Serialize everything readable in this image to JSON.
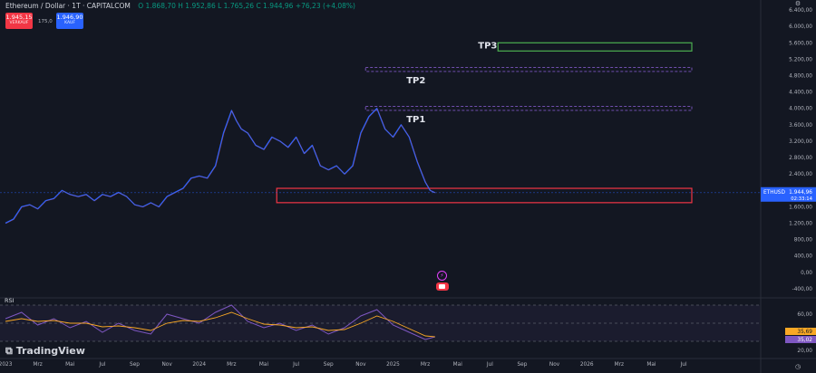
{
  "header": {
    "symbol": "Ethereum / Dollar · 1T · CAPITALCOM",
    "ohlc": "O 1.868,70  H 1.952,86  L 1.765,26  C 1.944,96  +76,23 (+4,08%)"
  },
  "trade": {
    "sell_price": "1.945,15",
    "sell_label": "VERKAUF",
    "buy_price": "1.946,90",
    "buy_label": "KAUF",
    "spread": "175,0"
  },
  "brand": "TradingView",
  "indicator": {
    "name": "RSI",
    "value_1": "35,69",
    "value_2": "35,02"
  },
  "colors": {
    "background": "#131722",
    "candle": "#2962ff",
    "zone_red": "#f23645",
    "tp3": "#4caf50",
    "tp_dashed": "#7e57c2",
    "rsi_line": "#7e57c2",
    "rsi_ma": "#f9a825",
    "price_tag": "#2962ff"
  },
  "chart_data": {
    "type": "line",
    "title": "Ethereum / Dollar · 1T · CAPITALCOM",
    "symbol_tag": "ETHUSD",
    "last_price": "1.944,96",
    "countdown": "02:33:14",
    "ylim": [
      -600,
      6600
    ],
    "y_ticks": [
      "6.400,00",
      "6.000,00",
      "5.600,00",
      "5.200,00",
      "4.800,00",
      "4.400,00",
      "4.000,00",
      "3.600,00",
      "3.200,00",
      "2.800,00",
      "2.400,00",
      "2.000,00",
      "1.600,00",
      "1.200,00",
      "800,00",
      "400,00",
      "0,00",
      "-400,00"
    ],
    "y_tick_values": [
      6400,
      6000,
      5600,
      5200,
      4800,
      4400,
      4000,
      3600,
      3200,
      2800,
      2400,
      2000,
      1600,
      1200,
      800,
      400,
      0,
      -400
    ],
    "x_ticks": [
      "2023",
      "Mrz",
      "Mai",
      "Jul",
      "Sep",
      "Nov",
      "2024",
      "Mrz",
      "Mai",
      "Jul",
      "Sep",
      "Nov",
      "2025",
      "Mrz",
      "Mai",
      "Jul",
      "Sep",
      "Nov",
      "2026",
      "Mrz",
      "Mai",
      "Jul"
    ],
    "x_tick_months": [
      0,
      2,
      4,
      6,
      8,
      10,
      12,
      14,
      16,
      18,
      20,
      22,
      24,
      26,
      28,
      30,
      32,
      34,
      36,
      38,
      40,
      42
    ],
    "series": [
      {
        "months": [
          0,
          0.5,
          1,
          1.5,
          2,
          2.5,
          3,
          3.5,
          4,
          4.5,
          5,
          5.5,
          6,
          6.5,
          7,
          7.5,
          8,
          8.5,
          9,
          9.5,
          10,
          10.5,
          11,
          11.5,
          12,
          12.5,
          13,
          13.5,
          14,
          14.3,
          14.6,
          15,
          15.5,
          16,
          16.5,
          17,
          17.5,
          18,
          18.5,
          19,
          19.5,
          20,
          20.5,
          21,
          21.5,
          22,
          22.5,
          23,
          23.5,
          24,
          24.5,
          25,
          25.5,
          26,
          26.3,
          26.6
        ],
        "values": [
          1200,
          1300,
          1600,
          1650,
          1550,
          1750,
          1800,
          2000,
          1900,
          1850,
          1900,
          1750,
          1900,
          1850,
          1950,
          1850,
          1650,
          1600,
          1700,
          1600,
          1850,
          1950,
          2050,
          2300,
          2350,
          2300,
          2600,
          3400,
          3950,
          3700,
          3500,
          3400,
          3100,
          3000,
          3300,
          3200,
          3050,
          3300,
          2900,
          3100,
          2600,
          2500,
          2600,
          2400,
          2600,
          3400,
          3800,
          4000,
          3500,
          3300,
          3600,
          3300,
          2700,
          2200,
          2000,
          1945
        ]
      }
    ],
    "annotations": [
      {
        "label": "TP1",
        "y_low": 3950,
        "y_high": 4050,
        "x_from": 22.3,
        "x_to": 42.5,
        "style": "dashed"
      },
      {
        "label": "TP2",
        "y_low": 4900,
        "y_high": 5000,
        "x_from": 22.3,
        "x_to": 42.5,
        "style": "dashed"
      },
      {
        "label": "TP3",
        "y_low": 5400,
        "y_high": 5600,
        "x_from": 30.5,
        "x_to": 42.5,
        "style": "solid"
      },
      {
        "label": "",
        "y_low": 1700,
        "y_high": 2050,
        "x_from": 16.8,
        "x_to": 42.5,
        "style": "zone"
      }
    ],
    "rsi": {
      "ylim": [
        15,
        75
      ],
      "y_ticks": [
        "60,00",
        "40,00",
        "20,00"
      ],
      "y_tick_values": [
        60,
        40,
        20
      ],
      "bands": [
        30,
        50,
        70
      ],
      "months": [
        0,
        1,
        2,
        3,
        4,
        5,
        6,
        7,
        8,
        9,
        10,
        11,
        12,
        13,
        14,
        15,
        16,
        17,
        18,
        19,
        20,
        21,
        22,
        23,
        24,
        25,
        26,
        26.6
      ],
      "values": [
        55,
        62,
        48,
        55,
        45,
        52,
        40,
        50,
        42,
        38,
        60,
        55,
        50,
        62,
        70,
        52,
        45,
        50,
        42,
        48,
        38,
        45,
        58,
        65,
        48,
        40,
        32,
        35
      ],
      "ma": [
        52,
        55,
        52,
        53,
        50,
        50,
        46,
        47,
        45,
        42,
        50,
        53,
        52,
        56,
        62,
        55,
        49,
        48,
        45,
        46,
        42,
        43,
        50,
        58,
        52,
        44,
        36,
        35
      ]
    }
  }
}
